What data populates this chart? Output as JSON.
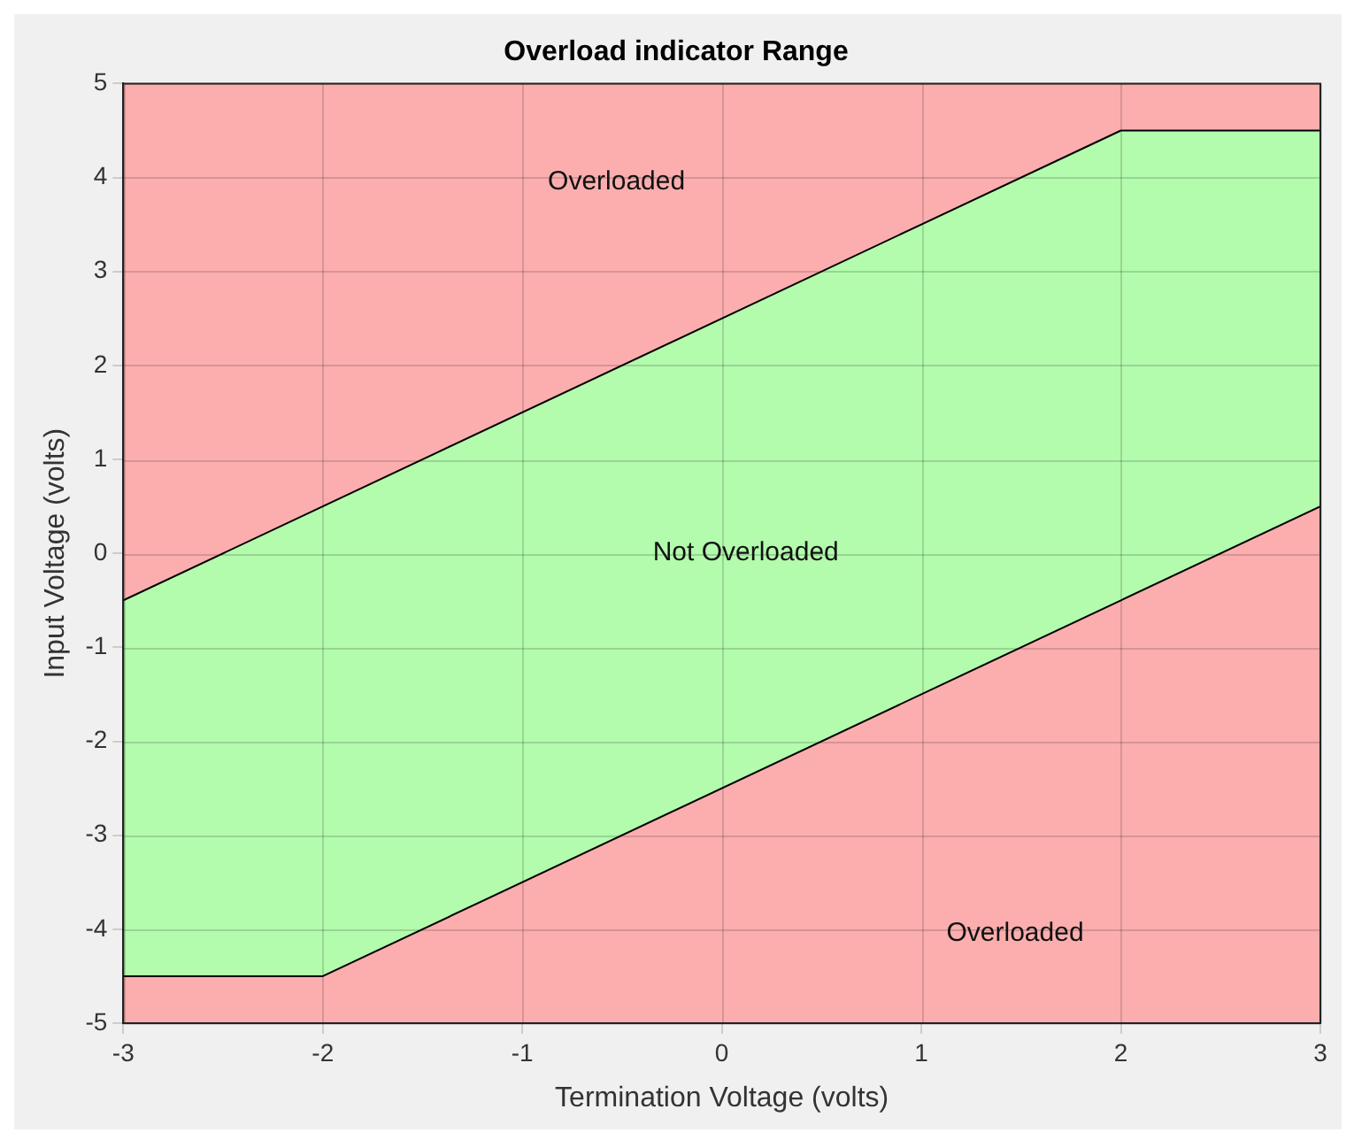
{
  "chart_data": {
    "type": "line",
    "title": "Overload indicator Range",
    "xlabel": "Termination Voltage (volts)",
    "ylabel": "Input Voltage (volts)",
    "x": [
      -3,
      -2,
      2,
      3
    ],
    "series": [
      {
        "color": "#000000",
        "values": [
          -0.5,
          0.5,
          4.5,
          4.5
        ]
      },
      {
        "color": "#000000",
        "values": [
          -4.5,
          -4.5,
          -0.5,
          0.5
        ],
        "lower": [
          -4.5,
          -4.5,
          -0.5,
          0.5
        ],
        "upper": [
          -0.5,
          0.5,
          4.5,
          4.5
        ]
      }
    ],
    "xlim": [
      -3,
      3
    ],
    "xticks": [
      -3,
      -2,
      -1,
      0,
      1,
      2,
      3
    ],
    "ylim": [
      -5,
      5
    ],
    "yticks": [
      -5,
      -4,
      -3,
      -2,
      -1,
      0,
      1,
      2,
      3,
      4,
      5
    ],
    "annotations": [
      "Overloaded",
      "Not Overloaded",
      "Overloaded"
    ],
    "grid": true,
    "legend": false,
    "marker": "none",
    "line_style": "solid"
  }
}
